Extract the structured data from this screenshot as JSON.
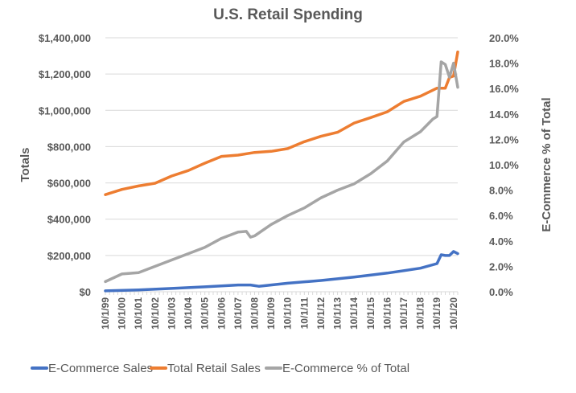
{
  "chart_data": {
    "type": "line",
    "title": "U.S. Retail Spending",
    "ylabel": "Totals",
    "y2label": "E-Commerce % of Total",
    "ylim": [
      0,
      1400000
    ],
    "y2lim": [
      0,
      20
    ],
    "yticks": [
      "$0",
      "$200,000",
      "$400,000",
      "$600,000",
      "$800,000",
      "$1,000,000",
      "$1,200,000",
      "$1,400,000"
    ],
    "y2ticks": [
      "0.0%",
      "2.0%",
      "4.0%",
      "6.0%",
      "8.0%",
      "10.0%",
      "12.0%",
      "14.0%",
      "16.0%",
      "18.0%",
      "20.0%"
    ],
    "xticks": [
      "10/1/99",
      "10/1/00",
      "10/1/01",
      "10/1/02",
      "10/1/03",
      "10/1/04",
      "10/1/05",
      "10/1/06",
      "10/1/07",
      "10/1/08",
      "10/1/09",
      "10/1/10",
      "10/1/11",
      "10/1/12",
      "10/1/13",
      "10/1/14",
      "10/1/15",
      "10/1/16",
      "10/1/17",
      "10/1/18",
      "10/1/19",
      "10/1/20"
    ],
    "x_range": [
      "10/1/99",
      "1/1/21"
    ],
    "grid": true,
    "legend": "bottom",
    "series": [
      {
        "name": "E-Commerce Sales",
        "axis": "left",
        "color": "#4472C4",
        "points": [
          [
            "10/1/99",
            5000
          ],
          [
            "10/1/01",
            10000
          ],
          [
            "10/1/03",
            18000
          ],
          [
            "10/1/05",
            27000
          ],
          [
            "10/1/07",
            37000
          ],
          [
            "7/1/08",
            37000
          ],
          [
            "1/1/09",
            30000
          ],
          [
            "10/1/10",
            47000
          ],
          [
            "10/1/12",
            62000
          ],
          [
            "10/1/14",
            81000
          ],
          [
            "10/1/16",
            103000
          ],
          [
            "10/1/18",
            130000
          ],
          [
            "10/1/19",
            155000
          ],
          [
            "1/1/20",
            204000
          ],
          [
            "4/1/20",
            200000
          ],
          [
            "7/1/20",
            200000
          ],
          [
            "10/1/20",
            222000
          ],
          [
            "1/1/21",
            210000
          ]
        ]
      },
      {
        "name": "Total Retail Sales",
        "axis": "left",
        "color": "#ED7D31",
        "points": [
          [
            "10/1/99",
            535000
          ],
          [
            "10/1/00",
            564000
          ],
          [
            "10/1/01",
            583000
          ],
          [
            "10/1/02",
            598000
          ],
          [
            "10/1/03",
            638000
          ],
          [
            "10/1/04",
            668000
          ],
          [
            "10/1/05",
            709000
          ],
          [
            "10/1/06",
            746000
          ],
          [
            "10/1/07",
            753000
          ],
          [
            "10/1/08",
            768000
          ],
          [
            "10/1/09",
            774000
          ],
          [
            "10/1/10",
            789000
          ],
          [
            "10/1/11",
            827000
          ],
          [
            "10/1/12",
            857000
          ],
          [
            "10/1/13",
            879000
          ],
          [
            "10/1/14",
            930000
          ],
          [
            "10/1/15",
            960000
          ],
          [
            "10/1/16",
            992000
          ],
          [
            "10/1/17",
            1049000
          ],
          [
            "10/1/18",
            1078000
          ],
          [
            "10/1/19",
            1122000
          ],
          [
            "1/1/20",
            1122000
          ],
          [
            "4/1/20",
            1122000
          ],
          [
            "7/1/20",
            1181000
          ],
          [
            "10/1/20",
            1189000
          ],
          [
            "1/1/21",
            1322000
          ]
        ]
      },
      {
        "name": "E-Commerce % of Total",
        "axis": "right",
        "color": "#A5A5A5",
        "points": [
          [
            "10/1/99",
            0.8
          ],
          [
            "10/1/00",
            1.4
          ],
          [
            "10/1/01",
            1.5
          ],
          [
            "10/1/02",
            2.0
          ],
          [
            "10/1/03",
            2.5
          ],
          [
            "10/1/04",
            3.0
          ],
          [
            "10/1/05",
            3.5
          ],
          [
            "10/1/06",
            4.2
          ],
          [
            "10/1/07",
            4.7
          ],
          [
            "4/1/08",
            4.75
          ],
          [
            "7/1/08",
            4.3
          ],
          [
            "10/1/08",
            4.4
          ],
          [
            "10/1/09",
            5.3
          ],
          [
            "10/1/10",
            6.0
          ],
          [
            "10/1/11",
            6.6
          ],
          [
            "10/1/12",
            7.4
          ],
          [
            "10/1/13",
            8.0
          ],
          [
            "10/1/14",
            8.5
          ],
          [
            "10/1/15",
            9.3
          ],
          [
            "10/1/16",
            10.3
          ],
          [
            "10/1/17",
            11.8
          ],
          [
            "10/1/18",
            12.6
          ],
          [
            "7/1/19",
            13.6
          ],
          [
            "10/1/19",
            13.8
          ],
          [
            "1/1/20",
            18.1
          ],
          [
            "4/1/20",
            17.9
          ],
          [
            "7/1/20",
            16.9
          ],
          [
            "10/1/20",
            18.0
          ],
          [
            "1/1/21",
            16.1
          ]
        ]
      }
    ]
  }
}
